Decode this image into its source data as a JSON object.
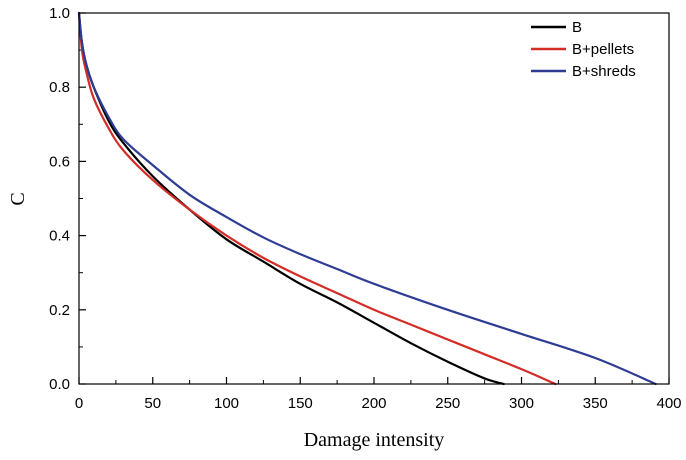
{
  "chart_data": {
    "type": "line",
    "title": "",
    "xlabel": "Damage intensity",
    "ylabel": "C",
    "xlim": [
      0,
      400
    ],
    "ylim": [
      0,
      1.0
    ],
    "xticks": [
      "0",
      "50",
      "100",
      "150",
      "200",
      "250",
      "300",
      "350",
      "400"
    ],
    "yticks": [
      "0.0",
      "0.2",
      "0.4",
      "0.6",
      "0.8",
      "1.0"
    ],
    "grid": false,
    "legend_position": "top-right",
    "series": [
      {
        "name": "B",
        "color": "#000000",
        "x": [
          0,
          2,
          5,
          10,
          20,
          30,
          50,
          75,
          100,
          125,
          150,
          175,
          200,
          225,
          250,
          275,
          288
        ],
        "y": [
          1.0,
          0.92,
          0.86,
          0.8,
          0.71,
          0.65,
          0.56,
          0.47,
          0.39,
          0.33,
          0.27,
          0.22,
          0.165,
          0.11,
          0.06,
          0.015,
          0.0
        ]
      },
      {
        "name": "B+pellets",
        "color": "#d42d27",
        "x": [
          0,
          2,
          5,
          10,
          20,
          30,
          50,
          75,
          100,
          125,
          150,
          175,
          200,
          225,
          250,
          275,
          300,
          323
        ],
        "y": [
          1.0,
          0.9,
          0.84,
          0.77,
          0.69,
          0.63,
          0.55,
          0.47,
          0.4,
          0.34,
          0.29,
          0.245,
          0.2,
          0.16,
          0.12,
          0.08,
          0.04,
          0.0
        ]
      },
      {
        "name": "B+shreds",
        "color": "#2e3c94",
        "x": [
          0,
          2,
          5,
          10,
          20,
          30,
          50,
          75,
          100,
          125,
          150,
          175,
          200,
          250,
          300,
          350,
          391
        ],
        "y": [
          1.0,
          0.92,
          0.86,
          0.8,
          0.72,
          0.66,
          0.59,
          0.51,
          0.45,
          0.395,
          0.35,
          0.31,
          0.27,
          0.2,
          0.135,
          0.07,
          0.0
        ]
      }
    ]
  }
}
